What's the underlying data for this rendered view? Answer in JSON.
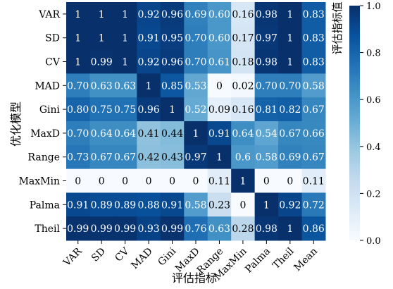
{
  "chart_data": {
    "type": "heatmap",
    "title": "",
    "xlabel": "评估指标",
    "ylabel": "优化模型",
    "colorbar_label": "评估指标值",
    "colormap": "Blues",
    "color_range": [
      0.0,
      1.0
    ],
    "colorbar_ticks": [
      "0.0",
      "0.2",
      "0.4",
      "0.6",
      "0.8",
      "1.0"
    ],
    "color_stops": [
      "#f7fbff",
      "#deebf7",
      "#c6dbef",
      "#9ecae1",
      "#6baed6",
      "#4292c6",
      "#2171b5",
      "#08519c",
      "#08306b"
    ],
    "x_categories": [
      "VAR",
      "SD",
      "CV",
      "MAD",
      "Gini",
      "MaxD",
      "Range",
      "MaxMin",
      "Palma",
      "Theil",
      "Mean"
    ],
    "y_categories": [
      "VAR",
      "SD",
      "CV",
      "MAD",
      "Gini",
      "MaxD",
      "Range",
      "MaxMin",
      "Palma",
      "Theil"
    ],
    "values": [
      [
        1,
        1,
        1,
        0.92,
        0.96,
        0.69,
        0.6,
        0.16,
        0.98,
        1,
        0.83
      ],
      [
        1,
        1,
        1,
        0.91,
        0.95,
        0.7,
        0.6,
        0.17,
        0.97,
        1,
        0.83
      ],
      [
        1,
        0.99,
        1,
        0.92,
        0.96,
        0.7,
        0.61,
        0.18,
        0.98,
        1,
        0.83
      ],
      [
        0.7,
        0.63,
        0.63,
        1,
        0.85,
        0.53,
        0,
        0.02,
        0.7,
        0.7,
        0.58
      ],
      [
        0.8,
        0.75,
        0.75,
        0.96,
        1,
        0.52,
        0.09,
        0.16,
        0.81,
        0.82,
        0.67
      ],
      [
        0.7,
        0.64,
        0.64,
        0.41,
        0.44,
        1,
        0.91,
        0.64,
        0.54,
        0.67,
        0.66
      ],
      [
        0.73,
        0.67,
        0.67,
        0.42,
        0.43,
        0.97,
        1,
        0.6,
        0.58,
        0.69,
        0.67
      ],
      [
        0,
        0,
        0,
        0,
        0,
        0,
        0.11,
        1,
        0,
        0,
        0.11
      ],
      [
        0.91,
        0.89,
        0.89,
        0.88,
        0.91,
        0.58,
        0.23,
        0,
        1,
        0.92,
        0.72
      ],
      [
        0.99,
        0.99,
        0.99,
        0.93,
        0.99,
        0.76,
        0.63,
        0.28,
        0.98,
        1,
        0.86
      ]
    ],
    "value_labels": [
      [
        "1",
        "1",
        "1",
        "0.92",
        "0.96",
        "0.69",
        "0.60",
        "0.16",
        "0.98",
        "1",
        "0.83"
      ],
      [
        "1",
        "1",
        "1",
        "0.91",
        "0.95",
        "0.70",
        "0.60",
        "0.17",
        "0.97",
        "1",
        "0.83"
      ],
      [
        "1",
        "0.99",
        "1",
        "0.92",
        "0.96",
        "0.70",
        "0.61",
        "0.18",
        "0.98",
        "1",
        "0.83"
      ],
      [
        "0.70",
        "0.63",
        "0.63",
        "1",
        "0.85",
        "0.53",
        "0",
        "0.02",
        "0.70",
        "0.70",
        "0.58"
      ],
      [
        "0.80",
        "0.75",
        "0.75",
        "0.96",
        "1",
        "0.52",
        "0.09",
        "0.16",
        "0.81",
        "0.82",
        "0.67"
      ],
      [
        "0.70",
        "0.64",
        "0.64",
        "0.41",
        "0.44",
        "1",
        "0.91",
        "0.64",
        "0.54",
        "0.67",
        "0.66"
      ],
      [
        "0.73",
        "0.67",
        "0.67",
        "0.42",
        "0.43",
        "0.97",
        "1",
        "0.6",
        "0.58",
        "0.69",
        "0.67"
      ],
      [
        "0",
        "0",
        "0",
        "0",
        "0",
        "0",
        "0.11",
        "1",
        "0",
        "0",
        "0.11"
      ],
      [
        "0.91",
        "0.89",
        "0.89",
        "0.88",
        "0.91",
        "0.58",
        "0.23",
        "0",
        "1",
        "0.92",
        "0.72"
      ],
      [
        "0.99",
        "0.99",
        "0.99",
        "0.93",
        "0.99",
        "0.76",
        "0.63",
        "0.28",
        "0.98",
        "1",
        "0.86"
      ]
    ]
  }
}
